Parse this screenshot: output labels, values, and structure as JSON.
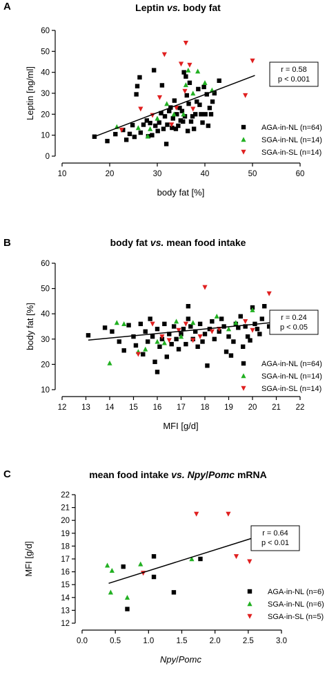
{
  "colors": {
    "aga": "#000000",
    "sga_nl": "#22b022",
    "sga_sl": "#e02020",
    "axis": "#000000"
  },
  "chart_data": [
    {
      "type": "scatter",
      "panel_label": "A",
      "title_parts": [
        {
          "text": "Leptin ",
          "italic": false
        },
        {
          "text": "vs.",
          "italic": true
        },
        {
          "text": " body fat",
          "italic": false
        }
      ],
      "xlabel": "body fat [%]",
      "ylabel": "Leptin [ng/ml]",
      "xlim": [
        10,
        60
      ],
      "ylim": [
        0,
        60
      ],
      "xticks": [
        10,
        20,
        30,
        40,
        50,
        60
      ],
      "yticks": [
        0,
        10,
        20,
        30,
        40,
        50,
        60
      ],
      "stats": {
        "r": "r = 0.58",
        "p": "p < 0.001"
      },
      "regression": [
        [
          17,
          9.5
        ],
        [
          50.5,
          38.5
        ]
      ],
      "series": [
        {
          "name": "AGA-in-NL (n=64)",
          "marker": "square",
          "color": "#000000",
          "points": [
            [
              16.8,
              9.3
            ],
            [
              19.5,
              7.2
            ],
            [
              21.2,
              10.5
            ],
            [
              22.8,
              12.5
            ],
            [
              23.5,
              7.8
            ],
            [
              24.2,
              10.6
            ],
            [
              24.8,
              14.8
            ],
            [
              25.2,
              9.2
            ],
            [
              25.6,
              29.5
            ],
            [
              25.8,
              33.4
            ],
            [
              26.3,
              37.6
            ],
            [
              26.5,
              11.2
            ],
            [
              27.1,
              15.0
            ],
            [
              27.8,
              17.0
            ],
            [
              28.1,
              9.5
            ],
            [
              28.5,
              15.8
            ],
            [
              28.9,
              10.0
            ],
            [
              29.3,
              41.0
            ],
            [
              29.6,
              14.5
            ],
            [
              30.1,
              12.0
            ],
            [
              30.4,
              16.0
            ],
            [
              30.8,
              20.5
            ],
            [
              31.0,
              33.8
            ],
            [
              31.3,
              13.0
            ],
            [
              31.6,
              19.0
            ],
            [
              31.9,
              5.8
            ],
            [
              32.1,
              15.0
            ],
            [
              32.5,
              21.5
            ],
            [
              32.8,
              23.2
            ],
            [
              33.1,
              13.5
            ],
            [
              33.3,
              18.0
            ],
            [
              33.6,
              26.5
            ],
            [
              33.9,
              13.0
            ],
            [
              34.1,
              20.0
            ],
            [
              34.4,
              14.5
            ],
            [
              34.7,
              23.0
            ],
            [
              34.9,
              17.0
            ],
            [
              35.2,
              21.5
            ],
            [
              35.4,
              16.5
            ],
            [
              35.6,
              40.0
            ],
            [
              35.8,
              19.0
            ],
            [
              36.0,
              38.0
            ],
            [
              36.2,
              29.0
            ],
            [
              36.4,
              12.0
            ],
            [
              36.6,
              25.0
            ],
            [
              36.8,
              35.0
            ],
            [
              37.1,
              16.5
            ],
            [
              37.4,
              19.0
            ],
            [
              37.7,
              13.0
            ],
            [
              38.0,
              20.0
            ],
            [
              38.3,
              26.0
            ],
            [
              38.6,
              32.0
            ],
            [
              38.9,
              24.5
            ],
            [
              39.2,
              20.0
            ],
            [
              39.5,
              16.0
            ],
            [
              39.8,
              33.0
            ],
            [
              40.1,
              20.0
            ],
            [
              40.4,
              29.5
            ],
            [
              40.7,
              14.5
            ],
            [
              41.0,
              23.0
            ],
            [
              41.3,
              20.0
            ],
            [
              41.6,
              26.0
            ],
            [
              42.0,
              30.0
            ],
            [
              43.0,
              36.0
            ]
          ]
        },
        {
          "name": "SGA-in-NL (n=14)",
          "marker": "triangle",
          "color": "#22b022",
          "points": [
            [
              21.5,
              14.0
            ],
            [
              26.0,
              13.5
            ],
            [
              28.0,
              9.5
            ],
            [
              28.5,
              13.0
            ],
            [
              30.0,
              18.0
            ],
            [
              32.0,
              25.0
            ],
            [
              33.5,
              20.0
            ],
            [
              35.5,
              20.0
            ],
            [
              36.0,
              34.0
            ],
            [
              36.5,
              41.0
            ],
            [
              37.5,
              30.0
            ],
            [
              38.5,
              40.5
            ],
            [
              40.0,
              35.0
            ],
            [
              41.5,
              31.5
            ]
          ]
        },
        {
          "name": "SGA-in-SL (n=14)",
          "marker": "triangle-down",
          "color": "#e02020",
          "points": [
            [
              22.5,
              12.5
            ],
            [
              26.5,
              22.5
            ],
            [
              29.0,
              19.5
            ],
            [
              30.5,
              28.0
            ],
            [
              31.5,
              48.5
            ],
            [
              33.0,
              15.0
            ],
            [
              34.0,
              23.0
            ],
            [
              35.0,
              44.0
            ],
            [
              35.8,
              31.0
            ],
            [
              36.0,
              54.0
            ],
            [
              36.8,
              43.5
            ],
            [
              37.5,
              22.5
            ],
            [
              48.5,
              29.0
            ],
            [
              50.0,
              45.5
            ]
          ]
        }
      ]
    },
    {
      "type": "scatter",
      "panel_label": "B",
      "title_parts": [
        {
          "text": "body fat ",
          "italic": false
        },
        {
          "text": "vs.",
          "italic": true
        },
        {
          "text": " mean food intake",
          "italic": false
        }
      ],
      "xlabel": "MFI [g/d]",
      "ylabel": "body fat [%]",
      "xlim": [
        12,
        22
      ],
      "ylim": [
        10,
        60
      ],
      "xticks": [
        12,
        13,
        14,
        15,
        16,
        17,
        18,
        19,
        20,
        21,
        22
      ],
      "yticks": [
        10,
        20,
        30,
        40,
        50,
        60
      ],
      "stats": {
        "r": "r = 0.24",
        "p": "p < 0.05"
      },
      "regression": [
        [
          13.1,
          29.6
        ],
        [
          20.9,
          36.6
        ]
      ],
      "series": [
        {
          "name": "AGA-in-NL (n=64)",
          "marker": "square",
          "color": "#000000",
          "points": [
            [
              13.1,
              31.5
            ],
            [
              13.8,
              34.5
            ],
            [
              14.1,
              33.0
            ],
            [
              14.4,
              29.0
            ],
            [
              14.6,
              25.5
            ],
            [
              14.8,
              35.5
            ],
            [
              15.0,
              31.0
            ],
            [
              15.1,
              27.5
            ],
            [
              15.3,
              36.0
            ],
            [
              15.4,
              24.0
            ],
            [
              15.5,
              33.0
            ],
            [
              15.6,
              29.0
            ],
            [
              15.7,
              38.0
            ],
            [
              15.8,
              31.0
            ],
            [
              15.9,
              21.0
            ],
            [
              16.0,
              17.0
            ],
            [
              16.0,
              34.0
            ],
            [
              16.1,
              27.0
            ],
            [
              16.2,
              30.0
            ],
            [
              16.3,
              36.0
            ],
            [
              16.4,
              23.0
            ],
            [
              16.5,
              32.0
            ],
            [
              16.6,
              28.0
            ],
            [
              16.7,
              35.0
            ],
            [
              16.8,
              30.0
            ],
            [
              16.9,
              26.0
            ],
            [
              17.0,
              32.0
            ],
            [
              17.1,
              34.0
            ],
            [
              17.2,
              28.0
            ],
            [
              17.3,
              43.0
            ],
            [
              17.3,
              38.0
            ],
            [
              17.4,
              35.0
            ],
            [
              17.5,
              30.0
            ],
            [
              17.6,
              33.0
            ],
            [
              17.7,
              27.0
            ],
            [
              17.8,
              36.0
            ],
            [
              17.9,
              29.0
            ],
            [
              18.0,
              32.0
            ],
            [
              18.1,
              19.5
            ],
            [
              18.2,
              34.0
            ],
            [
              18.3,
              37.0
            ],
            [
              18.4,
              30.0
            ],
            [
              18.6,
              33.0
            ],
            [
              18.7,
              38.0
            ],
            [
              18.8,
              35.0
            ],
            [
              18.9,
              25.0
            ],
            [
              19.0,
              31.0
            ],
            [
              19.1,
              23.5
            ],
            [
              19.2,
              29.0
            ],
            [
              19.3,
              36.0
            ],
            [
              19.4,
              34.5
            ],
            [
              19.5,
              39.0
            ],
            [
              19.6,
              27.0
            ],
            [
              19.7,
              35.0
            ],
            [
              19.8,
              31.0
            ],
            [
              19.9,
              29.5
            ],
            [
              20.0,
              42.5
            ],
            [
              20.1,
              36.0
            ],
            [
              20.2,
              34.0
            ],
            [
              20.3,
              32.0
            ],
            [
              20.4,
              38.0
            ],
            [
              20.5,
              43.0
            ],
            [
              20.7,
              35.0
            ],
            [
              20.9,
              40.0
            ]
          ]
        },
        {
          "name": "SGA-in-NL (n=14)",
          "marker": "triangle",
          "color": "#22b022",
          "points": [
            [
              14.0,
              20.5
            ],
            [
              14.3,
              36.5
            ],
            [
              14.6,
              36.0
            ],
            [
              15.2,
              25.0
            ],
            [
              15.5,
              26.0
            ],
            [
              16.0,
              29.0
            ],
            [
              16.3,
              28.5
            ],
            [
              16.8,
              37.0
            ],
            [
              17.0,
              31.0
            ],
            [
              17.5,
              36.5
            ],
            [
              18.5,
              39.0
            ],
            [
              19.0,
              34.0
            ],
            [
              19.3,
              36.5
            ],
            [
              20.0,
              41.5
            ]
          ]
        },
        {
          "name": "SGA-in-SL (n=14)",
          "marker": "triangle-down",
          "color": "#e02020",
          "points": [
            [
              15.2,
              24.0
            ],
            [
              15.8,
              36.0
            ],
            [
              16.2,
              31.0
            ],
            [
              16.5,
              29.5
            ],
            [
              16.9,
              33.5
            ],
            [
              17.2,
              36.0
            ],
            [
              17.5,
              29.5
            ],
            [
              17.8,
              31.0
            ],
            [
              18.0,
              50.5
            ],
            [
              18.3,
              33.0
            ],
            [
              18.6,
              34.0
            ],
            [
              19.7,
              37.0
            ],
            [
              20.0,
              33.5
            ],
            [
              20.7,
              48.0
            ]
          ]
        }
      ]
    },
    {
      "type": "scatter",
      "panel_label": "C",
      "title_parts": [
        {
          "text": "mean food intake ",
          "italic": false
        },
        {
          "text": "vs.",
          "italic": true
        },
        {
          "text": " ",
          "italic": false
        },
        {
          "text": "Npy",
          "italic": true
        },
        {
          "text": "/",
          "italic": false
        },
        {
          "text": "Pomc",
          "italic": true
        },
        {
          "text": " mRNA",
          "italic": false
        }
      ],
      "xlabel_parts": [
        {
          "text": "Npy",
          "italic": true
        },
        {
          "text": "/",
          "italic": false
        },
        {
          "text": "Pomc",
          "italic": true
        }
      ],
      "ylabel": "MFI [g/d]",
      "xlim": [
        0.0,
        3.0
      ],
      "ylim": [
        12,
        22
      ],
      "xticks": [
        "0.0",
        "0.5",
        "1.0",
        "1.5",
        "2.0",
        "2.5",
        "3.0"
      ],
      "yticks": [
        12,
        13,
        14,
        15,
        16,
        17,
        18,
        19,
        20,
        21,
        22
      ],
      "stats": {
        "r": "r = 0.64",
        "p": "p < 0.01"
      },
      "regression": [
        [
          0.4,
          15.1
        ],
        [
          2.55,
          18.6
        ]
      ],
      "series": [
        {
          "name": "AGA-in-NL (n=6)",
          "marker": "square",
          "color": "#000000",
          "points": [
            [
              0.62,
              16.4
            ],
            [
              0.68,
              13.1
            ],
            [
              1.08,
              15.6
            ],
            [
              1.08,
              17.2
            ],
            [
              1.38,
              14.4
            ],
            [
              1.78,
              17.0
            ]
          ]
        },
        {
          "name": "SGA-in-NL (n=6)",
          "marker": "triangle",
          "color": "#22b022",
          "points": [
            [
              0.38,
              16.5
            ],
            [
              0.43,
              14.4
            ],
            [
              0.45,
              16.1
            ],
            [
              0.68,
              14.0
            ],
            [
              0.88,
              16.6
            ],
            [
              1.65,
              17.0
            ]
          ]
        },
        {
          "name": "SGA-in-SL (n=5)",
          "marker": "triangle-down",
          "color": "#e02020",
          "points": [
            [
              0.92,
              15.9
            ],
            [
              1.72,
              20.5
            ],
            [
              2.2,
              20.5
            ],
            [
              2.32,
              17.2
            ],
            [
              2.52,
              16.8
            ]
          ]
        }
      ]
    }
  ]
}
